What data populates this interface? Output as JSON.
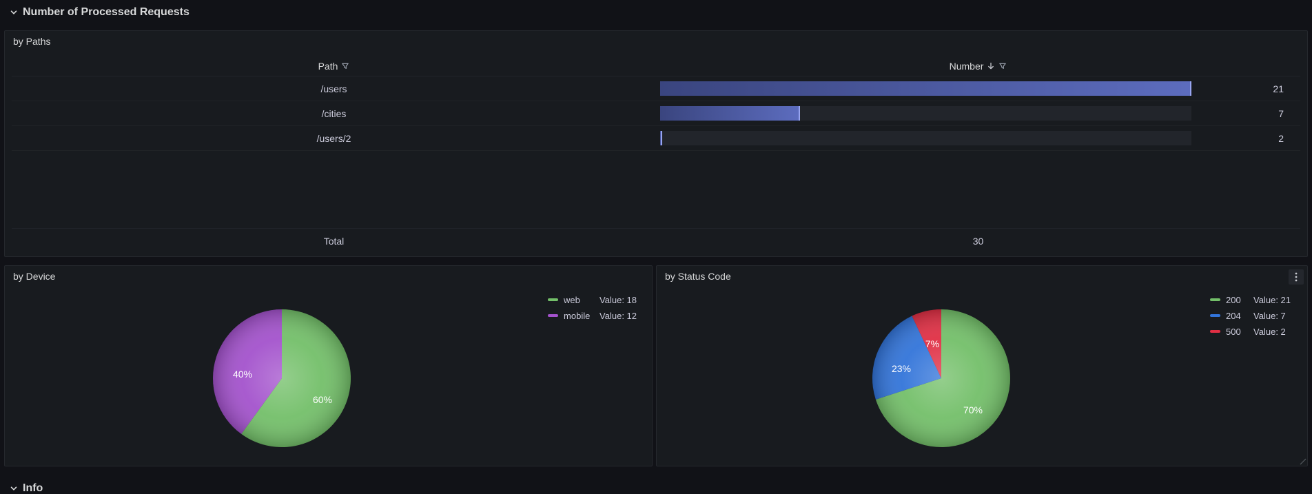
{
  "theme": {
    "page_bg": "#111217",
    "panel_bg": "#181b1f",
    "text": "#ccccdc",
    "bar_track": "#22252b",
    "bar_edge": "#98a5f1"
  },
  "rows": {
    "requests": {
      "label": "Number of Processed Requests"
    },
    "info": {
      "label": "Info"
    }
  },
  "icons": {
    "row_collapse": "chevron-down-icon",
    "column_filter": "filter-icon",
    "column_sort": "arrow-down-icon",
    "panel_menu": "kebab-menu-icon"
  },
  "chart_data": [
    {
      "type": "table",
      "title": "by Paths",
      "columns": [
        "Path",
        "Number"
      ],
      "rows": [
        [
          "/users",
          21
        ],
        [
          "/cities",
          7
        ],
        [
          "/users/2",
          2
        ]
      ],
      "footer": {
        "label": "Total",
        "total": 30
      },
      "sort": {
        "column": "Number",
        "direction": "desc"
      },
      "gauge": {
        "range": [
          2,
          21
        ],
        "bar_widths_pct": [
          100,
          26.3,
          0.4
        ]
      }
    },
    {
      "type": "pie",
      "title": "by Device",
      "labels": [
        "web",
        "mobile"
      ],
      "values": [
        18,
        12
      ],
      "percent_labels": [
        "60%",
        "40%"
      ],
      "colors": [
        "#73BF69",
        "#A352CC"
      ],
      "legend": [
        {
          "label": "web",
          "value_text": "Value: 18"
        },
        {
          "label": "mobile",
          "value_text": "Value: 12"
        }
      ],
      "legend_position": "right-top"
    },
    {
      "type": "pie",
      "title": "by Status Code",
      "labels": [
        "200",
        "204",
        "500"
      ],
      "values": [
        21,
        7,
        2
      ],
      "percent_labels": [
        "70%",
        "23%",
        "7%"
      ],
      "colors": [
        "#73BF69",
        "#3274D9",
        "#E02F44"
      ],
      "legend": [
        {
          "label": "200",
          "value_text": "Value: 21"
        },
        {
          "label": "204",
          "value_text": "Value: 7"
        },
        {
          "label": "500",
          "value_text": "Value: 2"
        }
      ],
      "legend_position": "right-top"
    }
  ]
}
